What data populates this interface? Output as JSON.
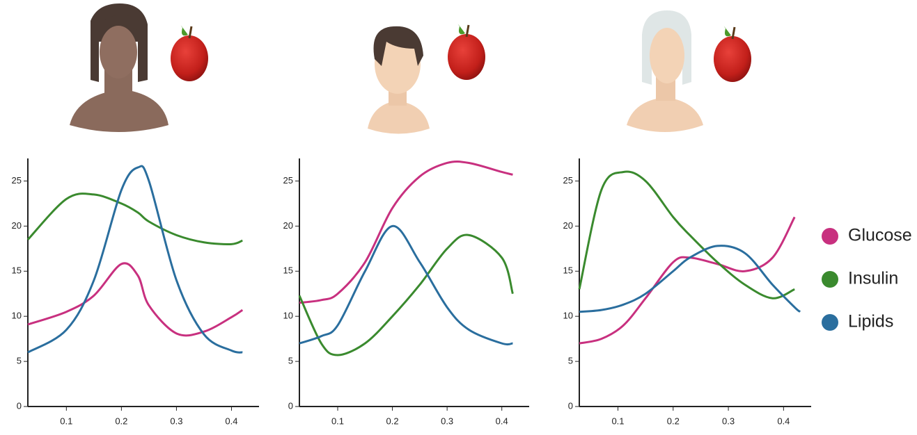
{
  "chart_data": [
    {
      "type": "line",
      "x": [
        0.03,
        0.1,
        0.15,
        0.2,
        0.23,
        0.25,
        0.3,
        0.35,
        0.4,
        0.42
      ],
      "xlim": [
        0.03,
        0.45
      ],
      "ylim": [
        0,
        27.5
      ],
      "xticks": [
        0.1,
        0.2,
        0.3,
        0.4
      ],
      "yticks": [
        0,
        5,
        10,
        15,
        20,
        25
      ],
      "series": [
        {
          "color": "#c8307f",
          "values": [
            9.1,
            10.5,
            12.3,
            15.8,
            14.5,
            11.2,
            8.1,
            8.3,
            9.9,
            10.7
          ]
        },
        {
          "color": "#3a8a2e",
          "values": [
            18.5,
            23,
            23.5,
            22.5,
            21.5,
            20.5,
            19,
            18.2,
            18,
            18.4
          ]
        },
        {
          "color": "#2a6e9e",
          "values": [
            6,
            8.5,
            14,
            24,
            26.5,
            25,
            14,
            8,
            6.2,
            6
          ]
        }
      ]
    },
    {
      "type": "line",
      "x": [
        0.03,
        0.07,
        0.1,
        0.15,
        0.2,
        0.25,
        0.3,
        0.34,
        0.4,
        0.42
      ],
      "xlim": [
        0.03,
        0.45
      ],
      "ylim": [
        0,
        27.5
      ],
      "xticks": [
        0.1,
        0.2,
        0.3,
        0.4
      ],
      "yticks": [
        0,
        5,
        10,
        15,
        20,
        25
      ],
      "series": [
        {
          "color": "#c8307f",
          "values": [
            11.5,
            11.8,
            12.5,
            16,
            22,
            25.5,
            27,
            27,
            26,
            25.7
          ]
        },
        {
          "color": "#3a8a2e",
          "values": [
            12.3,
            7,
            5.7,
            7,
            10,
            13.5,
            17.5,
            19,
            16.5,
            12.5
          ]
        },
        {
          "color": "#2a6e9e",
          "values": [
            7,
            7.8,
            9,
            15,
            20,
            16,
            11,
            8.5,
            7,
            7
          ]
        }
      ]
    },
    {
      "type": "line",
      "x": [
        0.03,
        0.07,
        0.11,
        0.15,
        0.2,
        0.23,
        0.28,
        0.33,
        0.38,
        0.42,
        0.43
      ],
      "xlim": [
        0.03,
        0.45
      ],
      "ylim": [
        0,
        27.5
      ],
      "xticks": [
        0.1,
        0.2,
        0.3,
        0.4
      ],
      "yticks": [
        0,
        5,
        10,
        15,
        20,
        25
      ],
      "legend": "right",
      "series": [
        {
          "name": "Glucose",
          "color": "#c8307f",
          "values": [
            7,
            7.5,
            9,
            12,
            16,
            16.5,
            15.8,
            15,
            16.5,
            21,
            null
          ]
        },
        {
          "name": "Insulin",
          "color": "#3a8a2e",
          "values": [
            13,
            24,
            26,
            25,
            21,
            19,
            16,
            13.5,
            12,
            13,
            null
          ]
        },
        {
          "name": "Lipids",
          "color": "#2a6e9e",
          "values": [
            10.5,
            10.7,
            11.3,
            12.5,
            15,
            16.5,
            17.8,
            17,
            13.5,
            11,
            10.5
          ]
        }
      ]
    }
  ]
}
